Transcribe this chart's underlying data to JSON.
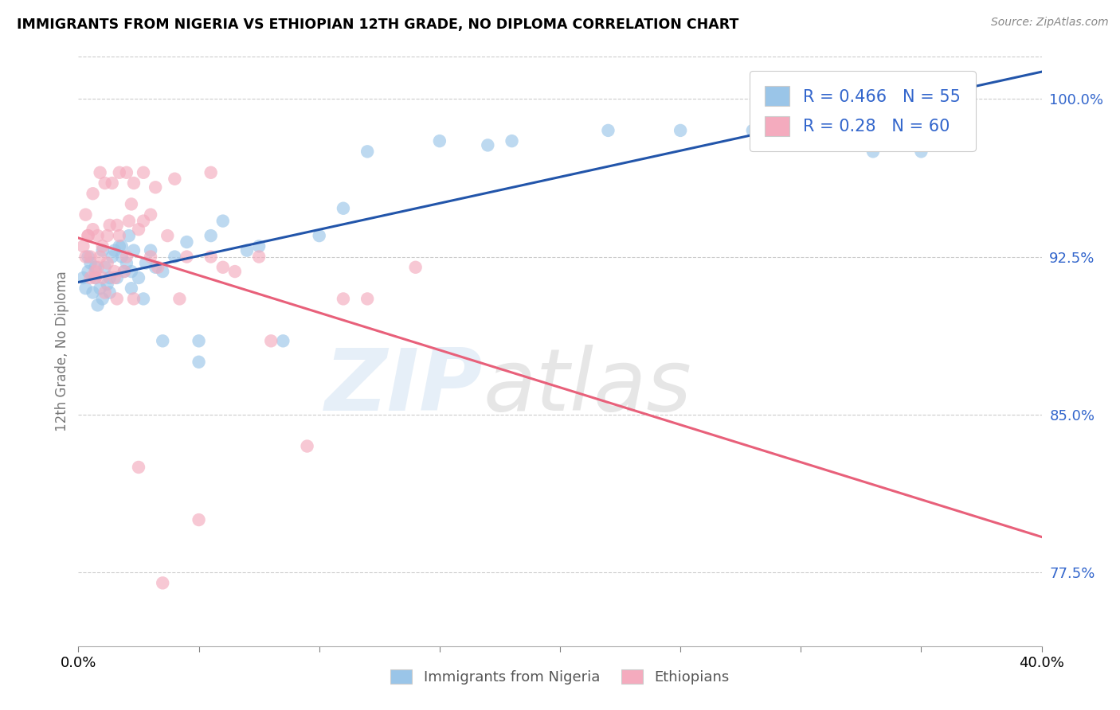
{
  "title": "IMMIGRANTS FROM NIGERIA VS ETHIOPIAN 12TH GRADE, NO DIPLOMA CORRELATION CHART",
  "source": "Source: ZipAtlas.com",
  "xlabel_nigeria": "Immigrants from Nigeria",
  "xlabel_ethiopian": "Ethiopians",
  "ylabel": "12th Grade, No Diploma",
  "xmin": 0.0,
  "xmax": 40.0,
  "ymin": 74.0,
  "ymax": 102.0,
  "yticks": [
    77.5,
    85.0,
    92.5,
    100.0
  ],
  "xticks": [
    0.0,
    40.0
  ],
  "R_nigeria": 0.466,
  "N_nigeria": 55,
  "R_ethiopian": 0.28,
  "N_ethiopian": 60,
  "color_nigeria": "#9AC5E8",
  "color_ethiopian": "#F4ABBE",
  "line_color_nigeria": "#2255AA",
  "line_color_ethiopian": "#E8607A",
  "legend_text_color": "#3366CC",
  "nigeria_x": [
    0.2,
    0.3,
    0.4,
    0.5,
    0.6,
    0.7,
    0.8,
    0.9,
    1.0,
    1.1,
    1.2,
    1.3,
    1.4,
    1.5,
    1.6,
    1.7,
    1.8,
    1.9,
    2.0,
    2.1,
    2.2,
    2.3,
    2.5,
    2.7,
    3.0,
    3.2,
    3.5,
    4.0,
    4.5,
    5.0,
    5.5,
    6.0,
    7.0,
    8.5,
    10.0,
    12.0,
    15.0,
    18.0,
    22.0,
    28.0,
    35.0,
    0.4,
    0.7,
    1.0,
    1.3,
    1.8,
    2.2,
    2.8,
    3.5,
    5.0,
    7.5,
    11.0,
    17.0,
    25.0,
    33.0
  ],
  "nigeria_y": [
    91.5,
    91.0,
    91.8,
    92.2,
    90.8,
    91.5,
    90.2,
    91.0,
    90.5,
    92.0,
    91.2,
    90.8,
    92.5,
    92.8,
    91.5,
    93.0,
    92.5,
    91.8,
    92.2,
    93.5,
    91.0,
    92.8,
    91.5,
    90.5,
    92.8,
    92.0,
    91.8,
    92.5,
    93.2,
    88.5,
    93.5,
    94.2,
    92.8,
    88.5,
    93.5,
    97.5,
    98.0,
    98.0,
    98.5,
    98.5,
    97.5,
    92.5,
    92.0,
    92.8,
    91.5,
    93.0,
    91.8,
    92.2,
    88.5,
    87.5,
    93.0,
    94.8,
    97.8,
    98.5,
    97.5
  ],
  "ethiopian_x": [
    0.2,
    0.3,
    0.5,
    0.6,
    0.7,
    0.8,
    0.9,
    1.0,
    1.1,
    1.2,
    1.3,
    1.5,
    1.6,
    1.7,
    1.9,
    2.0,
    2.1,
    2.3,
    2.5,
    2.7,
    3.0,
    3.3,
    3.7,
    4.2,
    5.0,
    6.0,
    7.5,
    0.4,
    0.6,
    0.9,
    1.1,
    1.4,
    1.7,
    2.0,
    2.3,
    2.7,
    3.2,
    4.0,
    5.5,
    8.0,
    12.0,
    0.3,
    0.5,
    0.8,
    1.2,
    1.6,
    2.2,
    3.0,
    4.5,
    6.5,
    9.5,
    14.0,
    0.4,
    0.7,
    1.0,
    1.5,
    2.5,
    3.5,
    5.5,
    11.0
  ],
  "ethiopian_y": [
    93.0,
    94.5,
    92.5,
    93.8,
    91.8,
    93.5,
    92.5,
    91.5,
    90.8,
    92.2,
    94.0,
    91.5,
    90.5,
    93.5,
    91.8,
    92.5,
    94.2,
    90.5,
    93.8,
    94.2,
    92.5,
    92.0,
    93.5,
    90.5,
    80.0,
    92.0,
    92.5,
    93.5,
    95.5,
    96.5,
    96.0,
    96.0,
    96.5,
    96.5,
    96.0,
    96.5,
    95.8,
    96.2,
    96.5,
    88.5,
    90.5,
    92.5,
    91.5,
    92.0,
    93.5,
    94.0,
    95.0,
    94.5,
    92.5,
    91.8,
    83.5,
    92.0,
    93.5,
    91.5,
    93.0,
    91.8,
    82.5,
    77.0,
    92.5,
    90.5
  ]
}
